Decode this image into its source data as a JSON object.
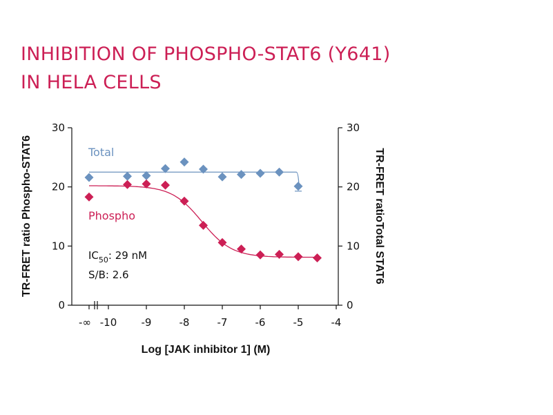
{
  "title": {
    "line1": "INHIBITION OF PHOSPHO-STAT6 (Y641)",
    "line2": "IN HELA CELLS"
  },
  "colors": {
    "title": "#cc1f55",
    "total": "#6b92bf",
    "phospho": "#cc1f55",
    "axis": "#111111"
  },
  "chart_data": {
    "type": "scatter",
    "title": "INHIBITION OF PHOSPHO-STAT6 (Y641) IN HELA CELLS",
    "xlabel": "Log [JAK inhibitor 1] (M)",
    "ylabel_left": "TR-FRET ratio Phospho-STAT6",
    "ylabel_right": "TR-FRET ratioTotal STAT6",
    "xlim": [
      -10,
      -4
    ],
    "ylim": [
      0,
      30
    ],
    "x_ticks": [
      "-∞",
      "-10",
      "-9",
      "-8",
      "-7",
      "-6",
      "-5",
      "-4"
    ],
    "y_ticks": [
      "0",
      "10",
      "20",
      "30"
    ],
    "x_break": "-∞",
    "grid": false,
    "series": [
      {
        "name": "Total",
        "marker": "diamond",
        "zero_dose_value": 21.6,
        "x": [
          -9.5,
          -9,
          -8.5,
          -8,
          -7.5,
          -7,
          -6.5,
          -6,
          -5.5,
          -5
        ],
        "y": [
          21.8,
          21.9,
          23.1,
          24.2,
          23.0,
          21.7,
          22.1,
          22.3,
          22.5,
          20.1
        ],
        "fit": "flat",
        "fit_level": 22.5
      },
      {
        "name": "Phospho",
        "marker": "diamond",
        "zero_dose_value": 18.3,
        "x": [
          -9.5,
          -9,
          -8.5,
          -8,
          -7.5,
          -7,
          -6.5,
          -6,
          -5.5,
          -5,
          -4.5
        ],
        "y": [
          20.4,
          20.5,
          20.3,
          17.6,
          13.5,
          10.6,
          9.5,
          8.5,
          8.6,
          8.2,
          8.0
        ],
        "fit": "sigmoid",
        "fit_top": 20.2,
        "fit_bottom": 8.1,
        "fit_logIC50": -7.54
      }
    ],
    "annotations": {
      "ic50_label": "IC",
      "ic50_sub": "50",
      "ic50_value": ": 29 nM",
      "sb": "S/B: 2.6"
    }
  }
}
